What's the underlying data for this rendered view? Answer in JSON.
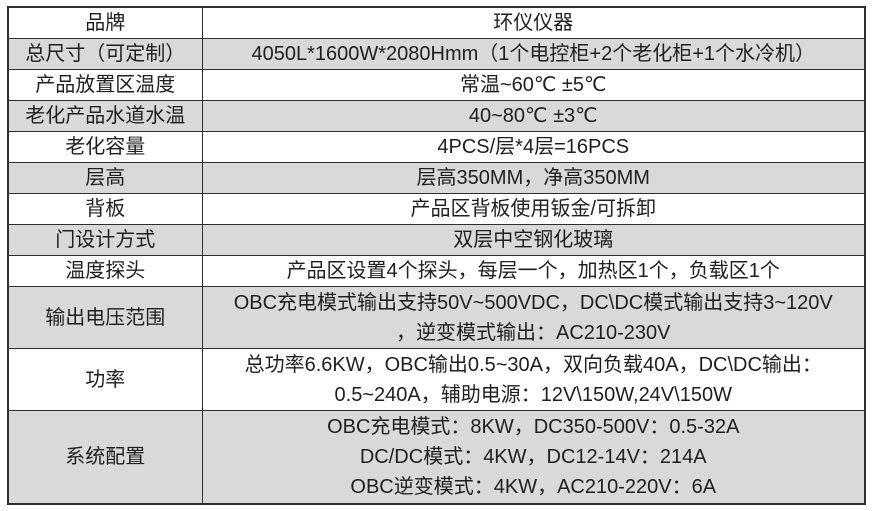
{
  "colors": {
    "row_alt_background": "#d9d9d9",
    "row_background": "#ffffff",
    "border": "#2f2f2f",
    "text": "#1f1f1f"
  },
  "table": {
    "rows": [
      {
        "label": "品牌",
        "lines": [
          "环仪仪器"
        ]
      },
      {
        "label": "总尺寸（可定制）",
        "lines": [
          "4050L*1600W*2080Hmm（1个电控柜+2个老化柜+1个水冷机）"
        ]
      },
      {
        "label": "产品放置区温度",
        "lines": [
          "常温~60℃ ±5℃"
        ]
      },
      {
        "label": "老化产品水道水温",
        "lines": [
          "40~80℃ ±3℃"
        ]
      },
      {
        "label": "老化容量",
        "lines": [
          "4PCS/层*4层=16PCS"
        ]
      },
      {
        "label": "层高",
        "lines": [
          "层高350MM，净高350MM"
        ]
      },
      {
        "label": "背板",
        "lines": [
          "产品区背板使用钣金/可拆卸"
        ]
      },
      {
        "label": "门设计方式",
        "lines": [
          "双层中空钢化玻璃"
        ]
      },
      {
        "label": "温度探头",
        "lines": [
          "产品区设置4个探头，每层一个，加热区1个，负载区1个"
        ]
      },
      {
        "label": "输出电压范围",
        "lines": [
          "OBC充电模式输出支持50V~500VDC，DC\\DC模式输出支持3~120V",
          "，逆变模式输出：AC210-230V"
        ]
      },
      {
        "label": "功率",
        "lines": [
          "总功率6.6KW，OBC输出0.5~30A，双向负载40A，DC\\DC输出：",
          "0.5~240A，辅助电源：12V\\150W,24V\\150W"
        ]
      },
      {
        "label": "系统配置",
        "lines": [
          "OBC充电模式：8KW，DC350-500V：0.5-32A",
          "DC/DC模式：4KW，DC12-14V：214A",
          "OBC逆变模式：4KW，AC210-220V：6A"
        ]
      }
    ]
  }
}
